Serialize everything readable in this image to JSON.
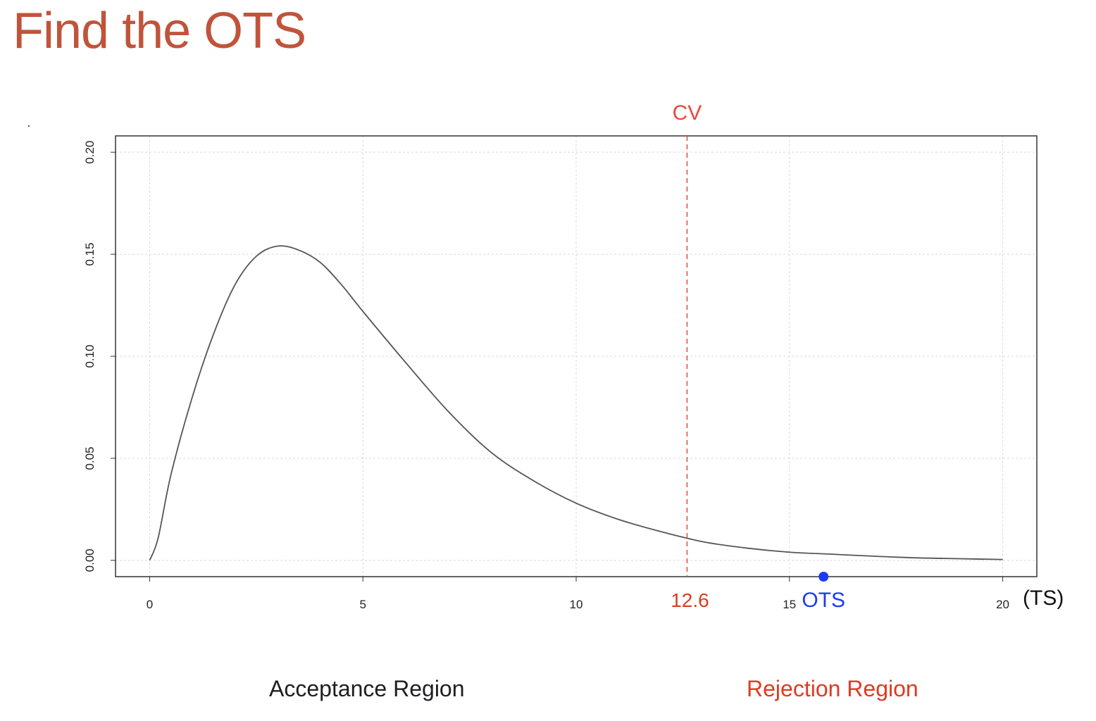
{
  "title": "Find the OTS",
  "chart_data": {
    "type": "line",
    "title": "",
    "xlabel": "(TS)",
    "ylabel": "",
    "xlim": [
      -0.8,
      20.8
    ],
    "ylim": [
      -0.008,
      0.208
    ],
    "x_ticks": [
      0,
      5,
      10,
      15,
      20
    ],
    "y_ticks": [
      "0.00",
      "0.05",
      "0.10",
      "0.15",
      "0.20"
    ],
    "grid": true,
    "series": [
      {
        "color": "#555555",
        "x": [
          0,
          0.2,
          0.5,
          1,
          1.5,
          2,
          2.5,
          3,
          3.5,
          4,
          4.5,
          5,
          6,
          7,
          8,
          9,
          10,
          11,
          12,
          13,
          14,
          15,
          16,
          17,
          18,
          19,
          20
        ],
        "y": [
          0.0,
          0.011,
          0.042,
          0.08,
          0.111,
          0.135,
          0.149,
          0.154,
          0.152,
          0.146,
          0.135,
          0.122,
          0.097,
          0.073,
          0.053,
          0.039,
          0.028,
          0.02,
          0.014,
          0.009,
          0.006,
          0.004,
          0.003,
          0.002,
          0.0012,
          0.0008,
          0.0004
        ]
      }
    ],
    "critical_value": {
      "label": "CV",
      "x": 12.6,
      "value_label": "12.6",
      "color": "#e8483a"
    },
    "observed_point": {
      "label": "OTS",
      "x": 15.8,
      "y": -0.008,
      "color": "#1a3cf5"
    },
    "regions": {
      "acceptance": "Acceptance Region",
      "rejection": "Rejection Region"
    }
  }
}
